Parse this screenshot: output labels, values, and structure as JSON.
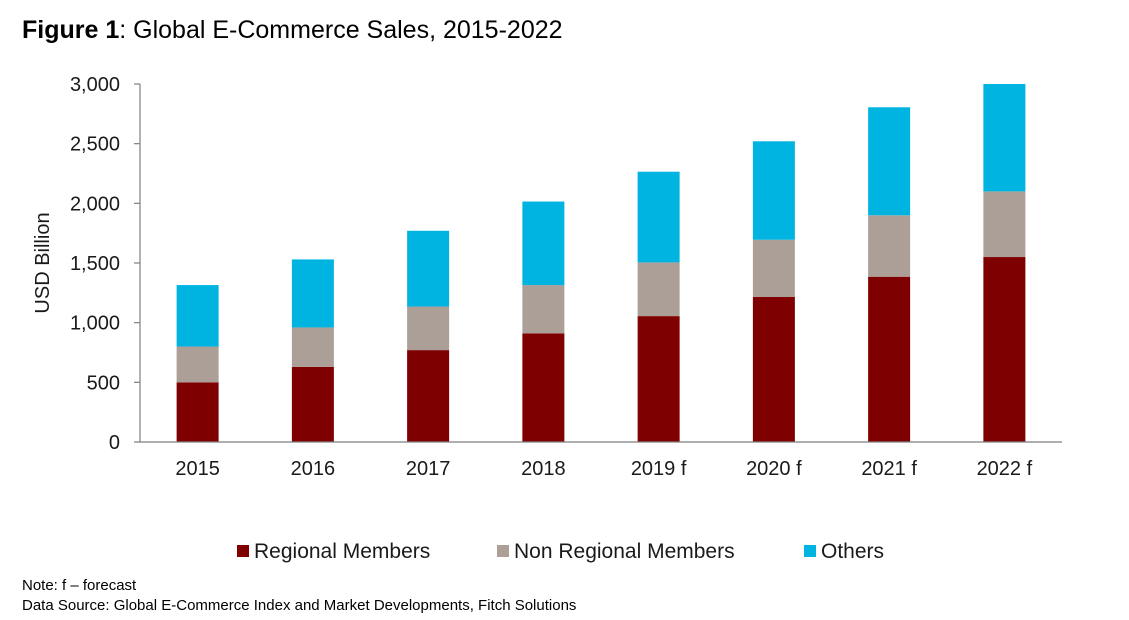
{
  "title": {
    "prefix": "Figure 1",
    "text": ": Global E-Commerce Sales, 2015-2022"
  },
  "notes": {
    "note": "Note: f – forecast",
    "source": "Data Source: Global E-Commerce Index and Market Developments, Fitch Solutions"
  },
  "chart_data": {
    "type": "bar",
    "stacked": true,
    "title": "Global E-Commerce Sales, 2015-2022",
    "xlabel": "",
    "ylabel": "USD Billion",
    "ylim": [
      0,
      3000
    ],
    "yticks": [
      0,
      500,
      1000,
      1500,
      2000,
      2500,
      3000
    ],
    "ytick_labels": [
      "0",
      "500",
      "1,000",
      "1,500",
      "2,000",
      "2,500",
      "3,000"
    ],
    "categories": [
      "2015",
      "2016",
      "2017",
      "2018",
      "2019 f",
      "2020 f",
      "2021 f",
      "2022 f"
    ],
    "series": [
      {
        "name": "Regional Members",
        "color": "#7f0000",
        "values": [
          500,
          630,
          770,
          910,
          1055,
          1215,
          1385,
          1550
        ]
      },
      {
        "name": "Non Regional Members",
        "color": "#ab9f97",
        "values": [
          300,
          330,
          365,
          405,
          450,
          480,
          515,
          550
        ]
      },
      {
        "name": "Others",
        "color": "#00b4e1",
        "values": [
          515,
          570,
          635,
          700,
          760,
          825,
          905,
          900
        ]
      }
    ],
    "grid": false,
    "legend_position": "bottom"
  }
}
